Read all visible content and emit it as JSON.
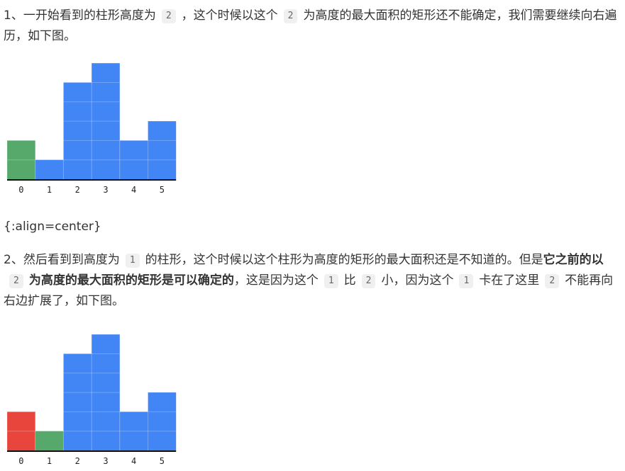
{
  "step1": {
    "text_before": "1、一开始看到的柱形高度为",
    "code_a": "2",
    "text_mid": "，这个时候以这个",
    "code_b": "2",
    "text_after": "为高度的最大面积的矩形还不能确定，我们需要继续向右遍历，如下图。"
  },
  "align_note": "{:align=center}",
  "step2": {
    "text_1": "2、然后看到到高度为",
    "code_1": "1",
    "text_2": "的柱形，这个时候以这个柱形为高度的矩形的最大面积还是不知道的。但是",
    "bold_1": "它之前的以",
    "code_2": "2",
    "bold_2": "为高度的最大面积的矩形是可以确定的",
    "text_3": "，这是因为这个",
    "code_3": "1",
    "text_4": "比",
    "code_4": "2",
    "text_5": "小，因为这个",
    "code_5": "1",
    "text_6": "卡在了这里",
    "code_6": "2",
    "text_7": "不能再向右边扩展了，如下图。"
  },
  "colors": {
    "blue": "#4285f4",
    "green": "#57a96b",
    "red": "#e8453c"
  },
  "chart_data": [
    {
      "type": "bar",
      "categories": [
        "0",
        "1",
        "2",
        "3",
        "4",
        "5"
      ],
      "values": [
        2,
        1,
        5,
        6,
        2,
        3
      ],
      "bar_colors": [
        "green",
        "blue",
        "blue",
        "blue",
        "blue",
        "blue"
      ],
      "grid": true
    },
    {
      "type": "bar",
      "categories": [
        "0",
        "1",
        "2",
        "3",
        "4",
        "5"
      ],
      "values": [
        2,
        1,
        5,
        6,
        2,
        3
      ],
      "bar_colors": [
        "red",
        "green",
        "blue",
        "blue",
        "blue",
        "blue"
      ],
      "grid": true
    }
  ]
}
